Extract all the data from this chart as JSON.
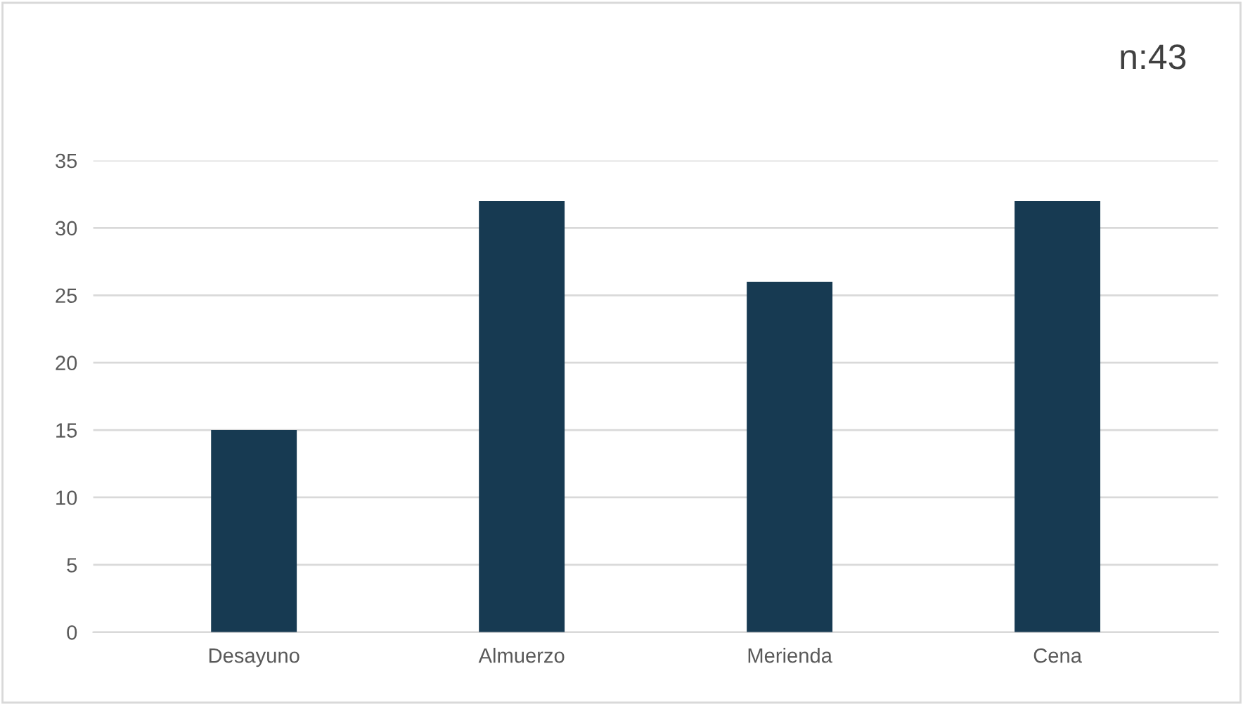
{
  "chart_data": {
    "type": "bar",
    "categories": [
      "Desayuno",
      "Almuerzo",
      "Merienda",
      "Cena"
    ],
    "values": [
      15,
      32,
      26,
      32
    ],
    "color": "#173a52",
    "ylim": [
      0,
      35
    ],
    "yticks": [
      0,
      5,
      10,
      15,
      20,
      25,
      30,
      35
    ],
    "grid": "y",
    "annotations": [
      "n:43"
    ]
  }
}
